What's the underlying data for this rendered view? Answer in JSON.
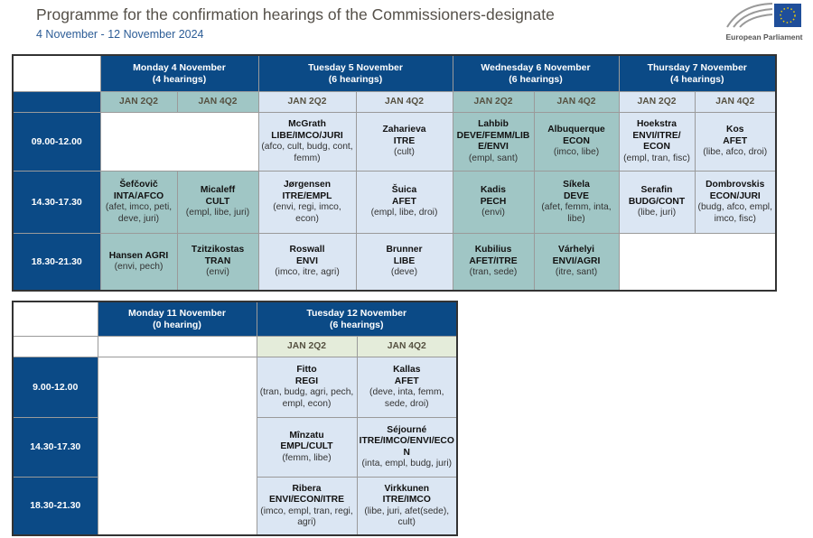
{
  "header": {
    "title": "Programme for the confirmation hearings of the Commissioners-designate",
    "dates": "4 November - 12 November 2024",
    "logo_text": "European Parliament"
  },
  "colors": {
    "header_blue": "#0b4a86",
    "teal": "#a0c6c5",
    "light_blue": "#dbe6f3",
    "light_green": "#e4ecda"
  },
  "week1": {
    "days": [
      {
        "label": "Monday 4 November",
        "count": "(4 hearings)",
        "rooms": [
          "JAN 2Q2",
          "JAN 4Q2"
        ],
        "shade": "teal"
      },
      {
        "label": "Tuesday 5 November",
        "count": "(6 hearings)",
        "rooms": [
          "JAN 2Q2",
          "JAN 4Q2"
        ],
        "shade": "lb"
      },
      {
        "label": "Wednesday 6 November",
        "count": "(6 hearings)",
        "rooms": [
          "JAN 2Q2",
          "JAN 4Q2"
        ],
        "shade": "teal"
      },
      {
        "label": "Thursday 7 November",
        "count": "(4 hearings)",
        "rooms": [
          "JAN 2Q2",
          "JAN 4Q2"
        ],
        "shade": "lb"
      }
    ],
    "rows": [
      {
        "time": "09.00-12.00",
        "cells": [
          null,
          null,
          {
            "name": "McGrath",
            "committee": "LIBE/IMCO/JURI",
            "associated": "(afco, cult, budg, cont, femm)"
          },
          {
            "name": "Zaharieva",
            "committee": "ITRE",
            "associated": "(cult)"
          },
          {
            "name": "Lahbib",
            "committee": "DEVE/FEMM/LIBE/ENVI",
            "associated": "(empl, sant)"
          },
          {
            "name": "Albuquerque",
            "committee": "ECON",
            "associated": "(imco, libe)"
          },
          {
            "name": "Hoekstra",
            "committee": "ENVI/ITRE/ ECON",
            "associated": "(empl, tran, fisc)"
          },
          {
            "name": "Kos",
            "committee": "AFET",
            "associated": "(libe, afco, droi)"
          }
        ]
      },
      {
        "time": "14.30-17.30",
        "cells": [
          {
            "name": "Šefčovič",
            "committee": "INTA/AFCO",
            "associated": "(afet, imco, peti, deve, juri)"
          },
          {
            "name": "Micaleff",
            "committee": "CULT",
            "associated": "(empl, libe, juri)"
          },
          {
            "name": "Jørgensen",
            "committee": "ITRE/EMPL",
            "associated": "(envi, regi, imco, econ)"
          },
          {
            "name": "Šuica",
            "committee": "AFET",
            "associated": "(empl, libe, droi)"
          },
          {
            "name": "Kadis",
            "committee": "PECH",
            "associated": "(envi)"
          },
          {
            "name": "Síkela",
            "committee": "DEVE",
            "associated": "(afet, femm, inta, libe)"
          },
          {
            "name": "Serafin",
            "committee": "BUDG/CONT",
            "associated": "(libe, juri)"
          },
          {
            "name": "Dombrovskis",
            "committee": "ECON/JURI",
            "associated": "(budg, afco, empl, imco, fisc)"
          }
        ]
      },
      {
        "time": "18.30-21.30",
        "cells": [
          {
            "name": "Hansen AGRI",
            "committee": "",
            "associated": "(envi, pech)"
          },
          {
            "name": "Tzitzikostas",
            "committee": "TRAN",
            "associated": "(envi)"
          },
          {
            "name": "Roswall",
            "committee": "ENVI",
            "associated": "(imco, itre, agri)"
          },
          {
            "name": "Brunner",
            "committee": "LIBE",
            "associated": "(deve)"
          },
          {
            "name": "Kubilius",
            "committee": "AFET/ITRE",
            "associated": "(tran, sede)"
          },
          {
            "name": "Várhelyi",
            "committee": "ENVI/AGRI",
            "associated": "(itre, sant)"
          },
          null,
          null
        ]
      }
    ]
  },
  "week2": {
    "days": [
      {
        "label": "Monday 11 November",
        "count": "(0 hearing)"
      },
      {
        "label": "Tuesday 12 November",
        "count": "(6 hearings)",
        "rooms": [
          "JAN 2Q2",
          "JAN 4Q2"
        ]
      }
    ],
    "rows": [
      {
        "time": "9.00-12.00",
        "cells": [
          {
            "name": "Fitto",
            "committee": "REGI",
            "associated": "(tran, budg, agri, pech, empl, econ)"
          },
          {
            "name": "Kallas",
            "committee": "AFET",
            "associated": "(deve, inta, femm, sede, droi)"
          }
        ]
      },
      {
        "time": "14.30-17.30",
        "cells": [
          {
            "name": "Mînzatu",
            "committee": "EMPL/CULT",
            "associated": "(femm, libe)"
          },
          {
            "name": "Séjourné",
            "committee": "ITRE/IMCO/ENVI/ECON",
            "associated": "(inta, empl, budg, juri)"
          }
        ]
      },
      {
        "time": "18.30-21.30",
        "cells": [
          {
            "name": "Ribera",
            "committee": "ENVI/ECON/ITRE",
            "associated": "(imco, empl, tran, regi, agri)"
          },
          {
            "name": "Virkkunen",
            "committee": "ITRE/IMCO",
            "associated": "(libe, juri, afet(sede), cult)"
          }
        ]
      }
    ]
  }
}
